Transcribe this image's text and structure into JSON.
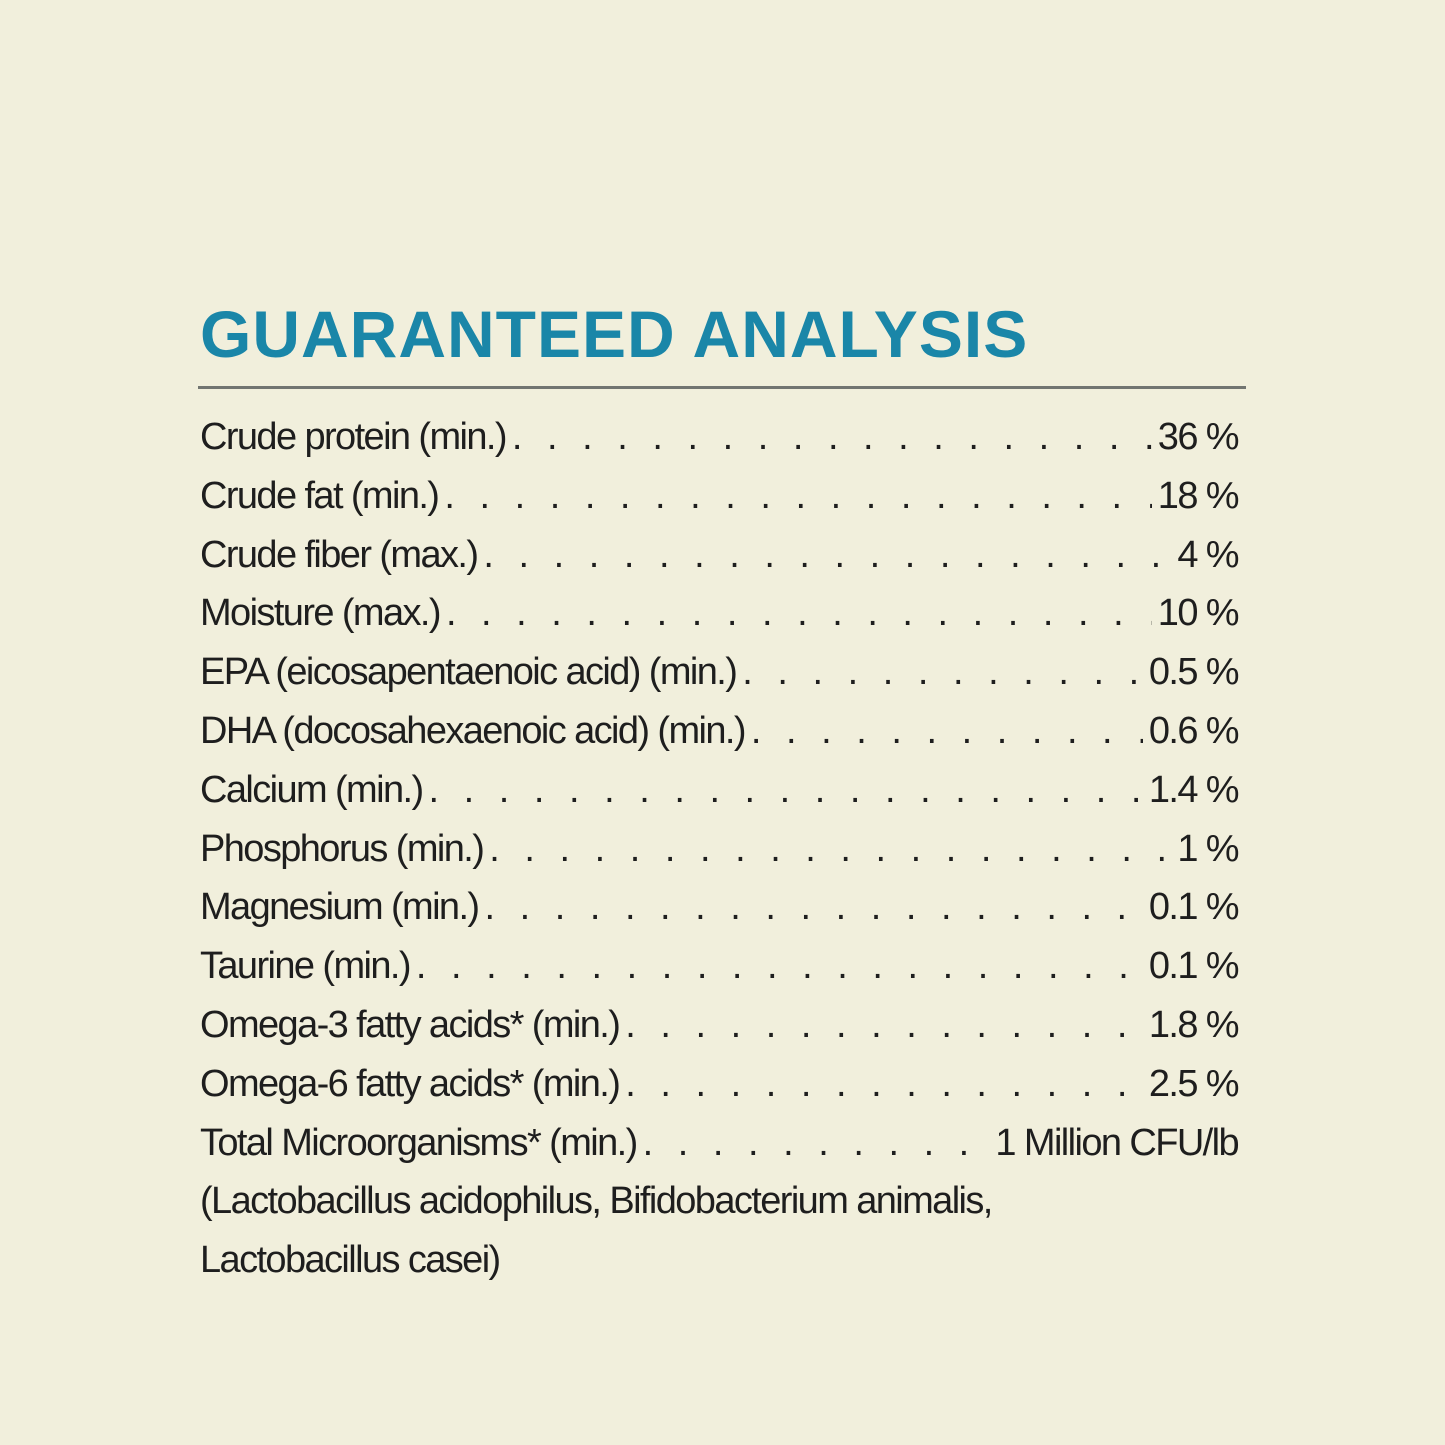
{
  "title": "GUARANTEED ANALYSIS",
  "colors": {
    "background": "#f1efdc",
    "title": "#1a86a8",
    "rule": "#727571",
    "text": "#1e1e1e"
  },
  "rows": [
    {
      "label": "Crude protein (min.)",
      "value": "36 %"
    },
    {
      "label": "Crude fat (min.)",
      "value": "18 %"
    },
    {
      "label": "Crude fiber (max.)",
      "value": "4 %"
    },
    {
      "label": "Moisture (max.)",
      "value": "10 %"
    },
    {
      "label": "EPA (eicosapentaenoic acid) (min.)",
      "value": "0.5 %"
    },
    {
      "label": "DHA (docosahexaenoic acid) (min.)",
      "value": "0.6 %"
    },
    {
      "label": "Calcium (min.)",
      "value": "1.4 %"
    },
    {
      "label": "Phosphorus (min.)",
      "value": "1 %"
    },
    {
      "label": "Magnesium (min.)",
      "value": "0.1 %"
    },
    {
      "label": "Taurine (min.)",
      "value": "0.1 %"
    },
    {
      "label": "Omega-3 fatty acids* (min.)",
      "value": "1.8 %"
    },
    {
      "label": "Omega-6 fatty acids* (min.)",
      "value": "2.5 %"
    },
    {
      "label": "Total Microorganisms* (min.)",
      "value": "1 Million CFU/lb"
    }
  ],
  "note_lines": [
    "(Lactobacillus acidophilus, Bifidobacterium animalis,",
    "Lactobacillus casei)"
  ]
}
